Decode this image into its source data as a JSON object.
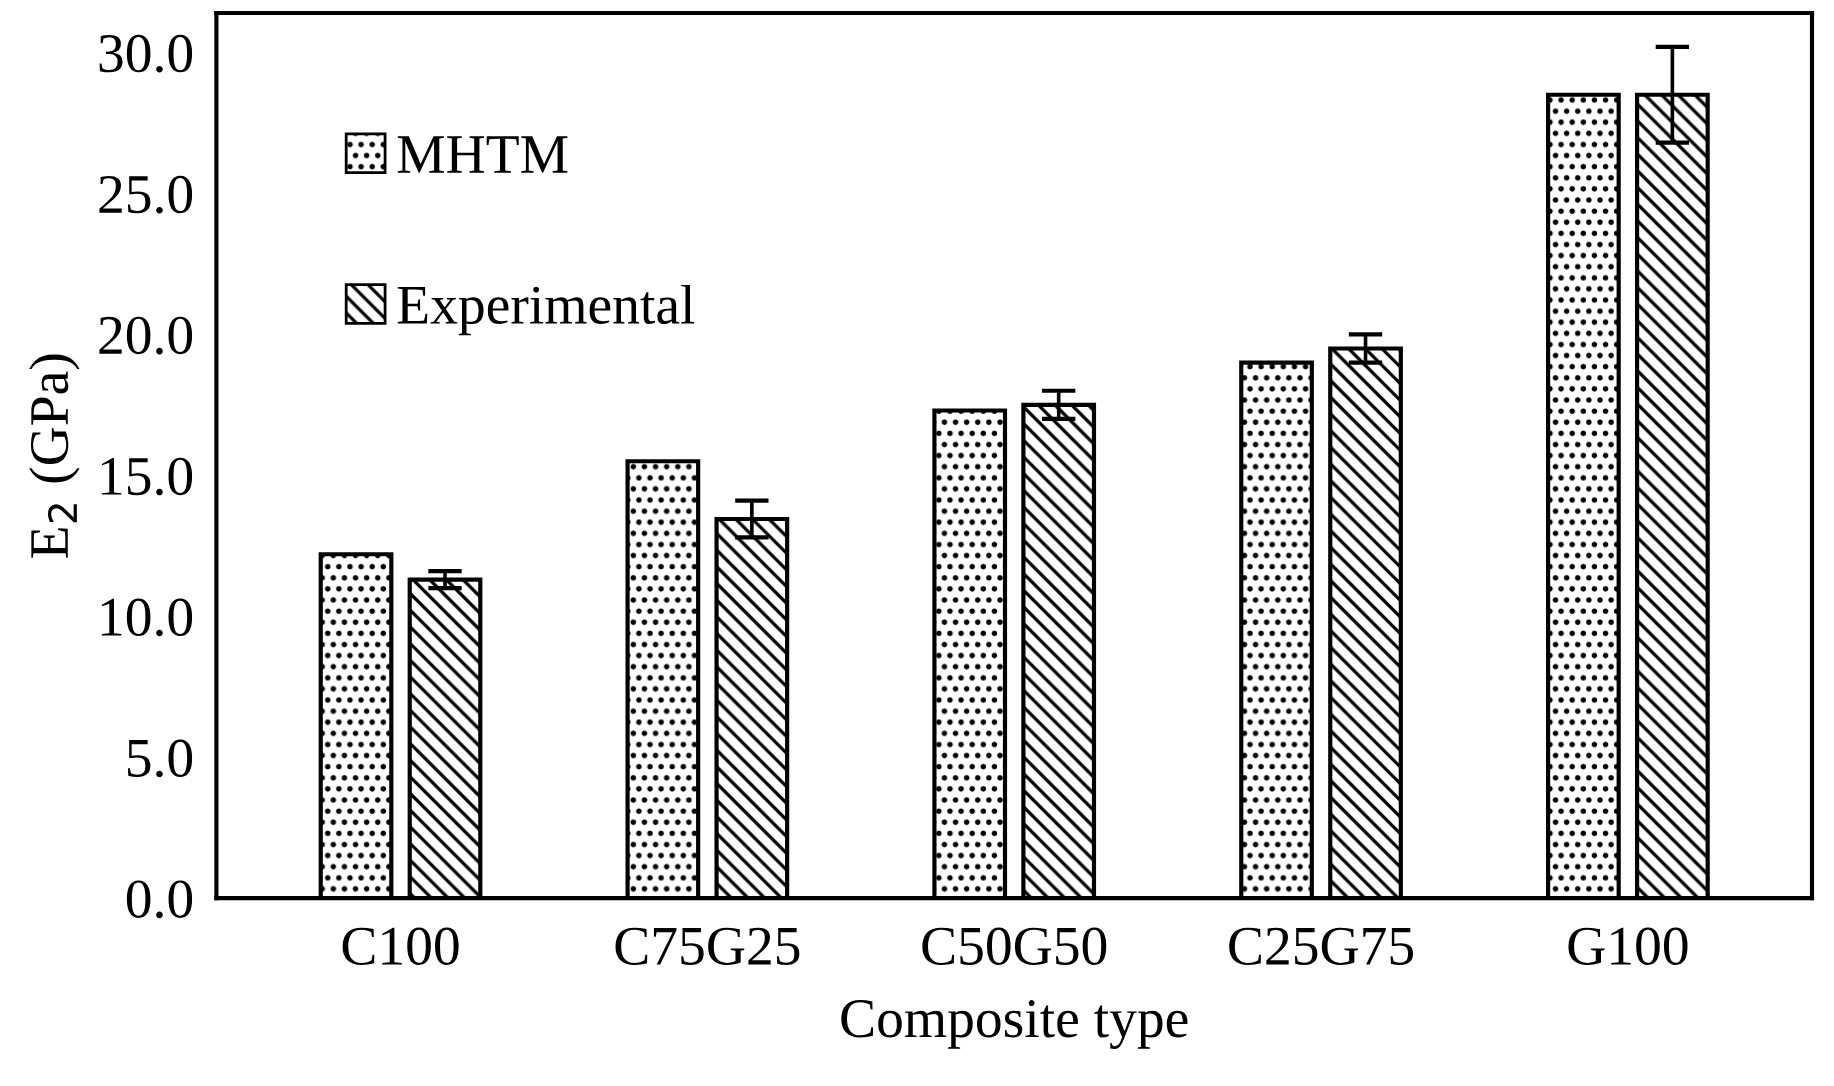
{
  "chart_data": {
    "type": "bar",
    "xlabel": "Composite type",
    "ylabel": "E$_{2}$ (GPa)",
    "categories": [
      "C100",
      "C75G25",
      "C50G50",
      "C25G75",
      "G100"
    ],
    "series": [
      {
        "name": "MHTM",
        "color": "#000000",
        "values": [
          12.2,
          15.5,
          17.3,
          19.0,
          28.5
        ]
      },
      {
        "name": "Experimental",
        "color": "#000000",
        "values": [
          11.3,
          13.45,
          17.5,
          19.5,
          28.5
        ],
        "errors": [
          0.3,
          0.65,
          0.5,
          0.5,
          1.7
        ]
      }
    ],
    "ylim": [
      0,
      31.4
    ],
    "yticks": [
      {
        "value": 0,
        "label": "0.0"
      },
      {
        "value": 5,
        "label": "5.0"
      },
      {
        "value": 10,
        "label": "10.0"
      },
      {
        "value": 15,
        "label": "15.0"
      },
      {
        "value": 20,
        "label": "20.0"
      },
      {
        "value": 25,
        "label": "25.0"
      },
      {
        "value": 30,
        "label": "30.0"
      }
    ],
    "grid": false,
    "legend": "top left"
  }
}
